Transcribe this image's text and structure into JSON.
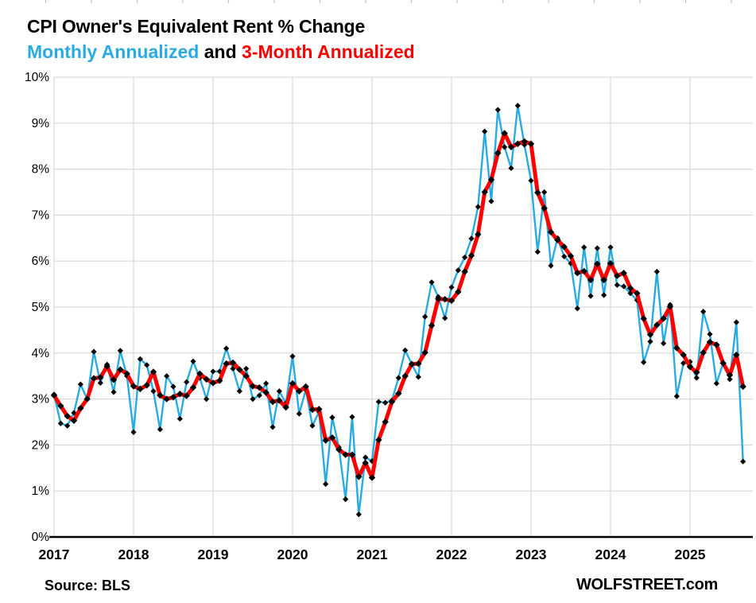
{
  "title": "CPI Owner's Equivalent Rent % Change",
  "subtitle": {
    "monthly": "Monthly Annualized",
    "connector": " and ",
    "three_month": "3-Month Annualized"
  },
  "footer": {
    "source": "Source: BLS",
    "brand": "WOLFSTREET.com"
  },
  "colors": {
    "monthly_line": "#29ABE2",
    "three_month_line": "#FF0000",
    "marker": "#000000",
    "gridline": "#D9D9D9",
    "axis": "#000000",
    "top_ticks": "#C0C0C0",
    "text": "#000000",
    "background": "#FFFFFF"
  },
  "chart_data": {
    "type": "line",
    "title": "CPI Owner's Equivalent Rent % Change",
    "xlabel": "",
    "ylabel": "",
    "x_start": "2017-01",
    "x_end": "2025-09",
    "x_frequency": "monthly",
    "x_tick_labels": [
      "2017",
      "2018",
      "2019",
      "2020",
      "2021",
      "2022",
      "2023",
      "2024",
      "2025"
    ],
    "x_tick_month_index": [
      0,
      12,
      24,
      36,
      48,
      60,
      72,
      84,
      96
    ],
    "y_tick_labels": [
      "0%",
      "1%",
      "2%",
      "3%",
      "4%",
      "5%",
      "6%",
      "7%",
      "8%",
      "9%",
      "10%"
    ],
    "ylim": [
      0,
      10
    ],
    "grid": true,
    "legend_position": "in-subtitle",
    "series": [
      {
        "name": "Monthly Annualized",
        "color": "#29ABE2",
        "marker": "black-diamond",
        "values": [
          3.1,
          2.47,
          2.42,
          2.7,
          3.32,
          3.0,
          4.03,
          3.35,
          3.75,
          3.15,
          4.05,
          3.5,
          2.28,
          3.87,
          3.74,
          3.17,
          2.34,
          3.5,
          3.27,
          2.57,
          3.37,
          3.82,
          3.46,
          3.0,
          3.6,
          3.6,
          4.1,
          3.66,
          3.17,
          3.66,
          3.0,
          3.08,
          3.34,
          2.39,
          3.17,
          2.91,
          3.93,
          2.68,
          3.2,
          2.42,
          2.72,
          1.15,
          2.6,
          1.95,
          0.82,
          2.61,
          0.49,
          1.73,
          1.65,
          2.94,
          2.92,
          2.97,
          3.46,
          4.06,
          3.76,
          3.48,
          4.79,
          5.54,
          5.22,
          4.76,
          5.43,
          5.8,
          6.08,
          6.49,
          7.18,
          8.82,
          7.3,
          9.29,
          8.48,
          8.02,
          9.38,
          8.53,
          7.75,
          6.2,
          7.5,
          5.9,
          6.5,
          6.1,
          5.95,
          4.97,
          6.3,
          5.24,
          6.28,
          5.26,
          6.3,
          5.48,
          5.45,
          5.3,
          5.15,
          3.8,
          4.25,
          5.77,
          4.21,
          5.05,
          3.06,
          3.78,
          3.81,
          3.46,
          4.9,
          4.41,
          3.34,
          3.78,
          3.43,
          4.67,
          1.64
        ]
      },
      {
        "name": "3-Month Annualized",
        "color": "#FF0000",
        "marker": "black-diamond",
        "values": [
          3.08,
          2.85,
          2.63,
          2.53,
          2.8,
          3.0,
          3.45,
          3.47,
          3.71,
          3.42,
          3.64,
          3.55,
          3.28,
          3.22,
          3.3,
          3.59,
          3.08,
          3.0,
          3.04,
          3.11,
          3.07,
          3.25,
          3.55,
          3.43,
          3.35,
          3.4,
          3.77,
          3.79,
          3.64,
          3.5,
          3.28,
          3.25,
          3.14,
          2.94,
          2.97,
          2.82,
          3.34,
          3.17,
          3.27,
          2.77,
          2.78,
          2.1,
          2.16,
          1.9,
          1.79,
          1.79,
          1.31,
          1.61,
          1.29,
          2.11,
          2.5,
          2.94,
          3.12,
          3.5,
          3.76,
          3.77,
          4.01,
          4.6,
          5.18,
          5.17,
          5.14,
          5.33,
          5.77,
          6.12,
          6.58,
          7.5,
          7.77,
          8.35,
          8.78,
          8.48,
          8.55,
          8.6,
          8.55,
          7.49,
          7.15,
          6.63,
          6.46,
          6.31,
          6.11,
          5.74,
          5.78,
          5.59,
          5.94,
          5.59,
          5.95,
          5.68,
          5.74,
          5.41,
          5.3,
          4.75,
          4.4,
          4.61,
          4.75,
          5.01,
          4.11,
          3.96,
          3.7,
          3.58,
          4.01,
          4.24,
          4.18,
          3.78,
          3.52,
          3.96,
          3.27
        ]
      }
    ]
  }
}
